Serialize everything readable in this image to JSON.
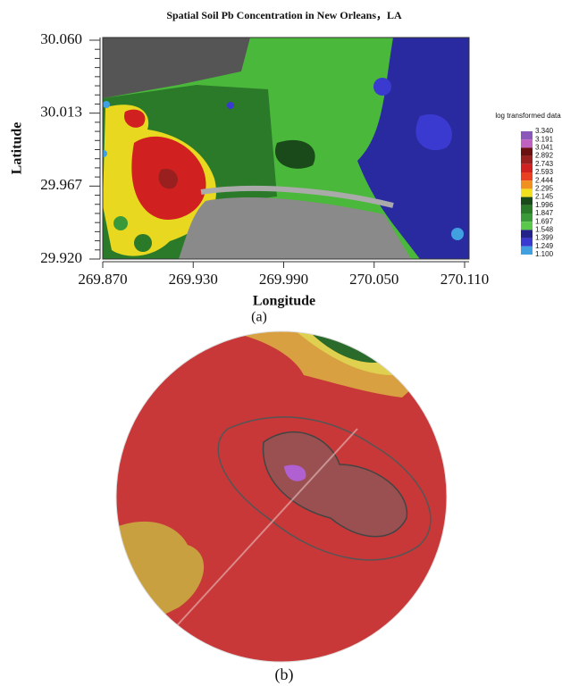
{
  "panel_a": {
    "title": "Spatial Soil Pb Concentration in New Orleans，LA",
    "x_label": "Longitude",
    "y_label": "Latitude",
    "xticks": [
      "269.870",
      "269.930",
      "269.990",
      "270.050",
      "270.110"
    ],
    "yticks": [
      "30.060",
      "30.013",
      "29.967",
      "29.920"
    ],
    "legend": {
      "title": "log transformed data",
      "labels": [
        "3.340",
        "3.191",
        "3.041",
        "2.892",
        "2.743",
        "2.593",
        "2.444",
        "2.295",
        "2.145",
        "1.996",
        "1.847",
        "1.697",
        "1.548",
        "1.399",
        "1.249",
        "1.100"
      ],
      "colors": [
        "#8a58b8",
        "#c060c0",
        "#6a1010",
        "#9a2020",
        "#d02020",
        "#e84020",
        "#f09020",
        "#f0e020",
        "#1a4a1a",
        "#2a7a2a",
        "#3a9a3a",
        "#5ac84a",
        "#23238a",
        "#3a3ad0",
        "#40a0e0"
      ]
    },
    "caption": "(a)"
  },
  "panel_b": {
    "caption": "(b)"
  }
}
